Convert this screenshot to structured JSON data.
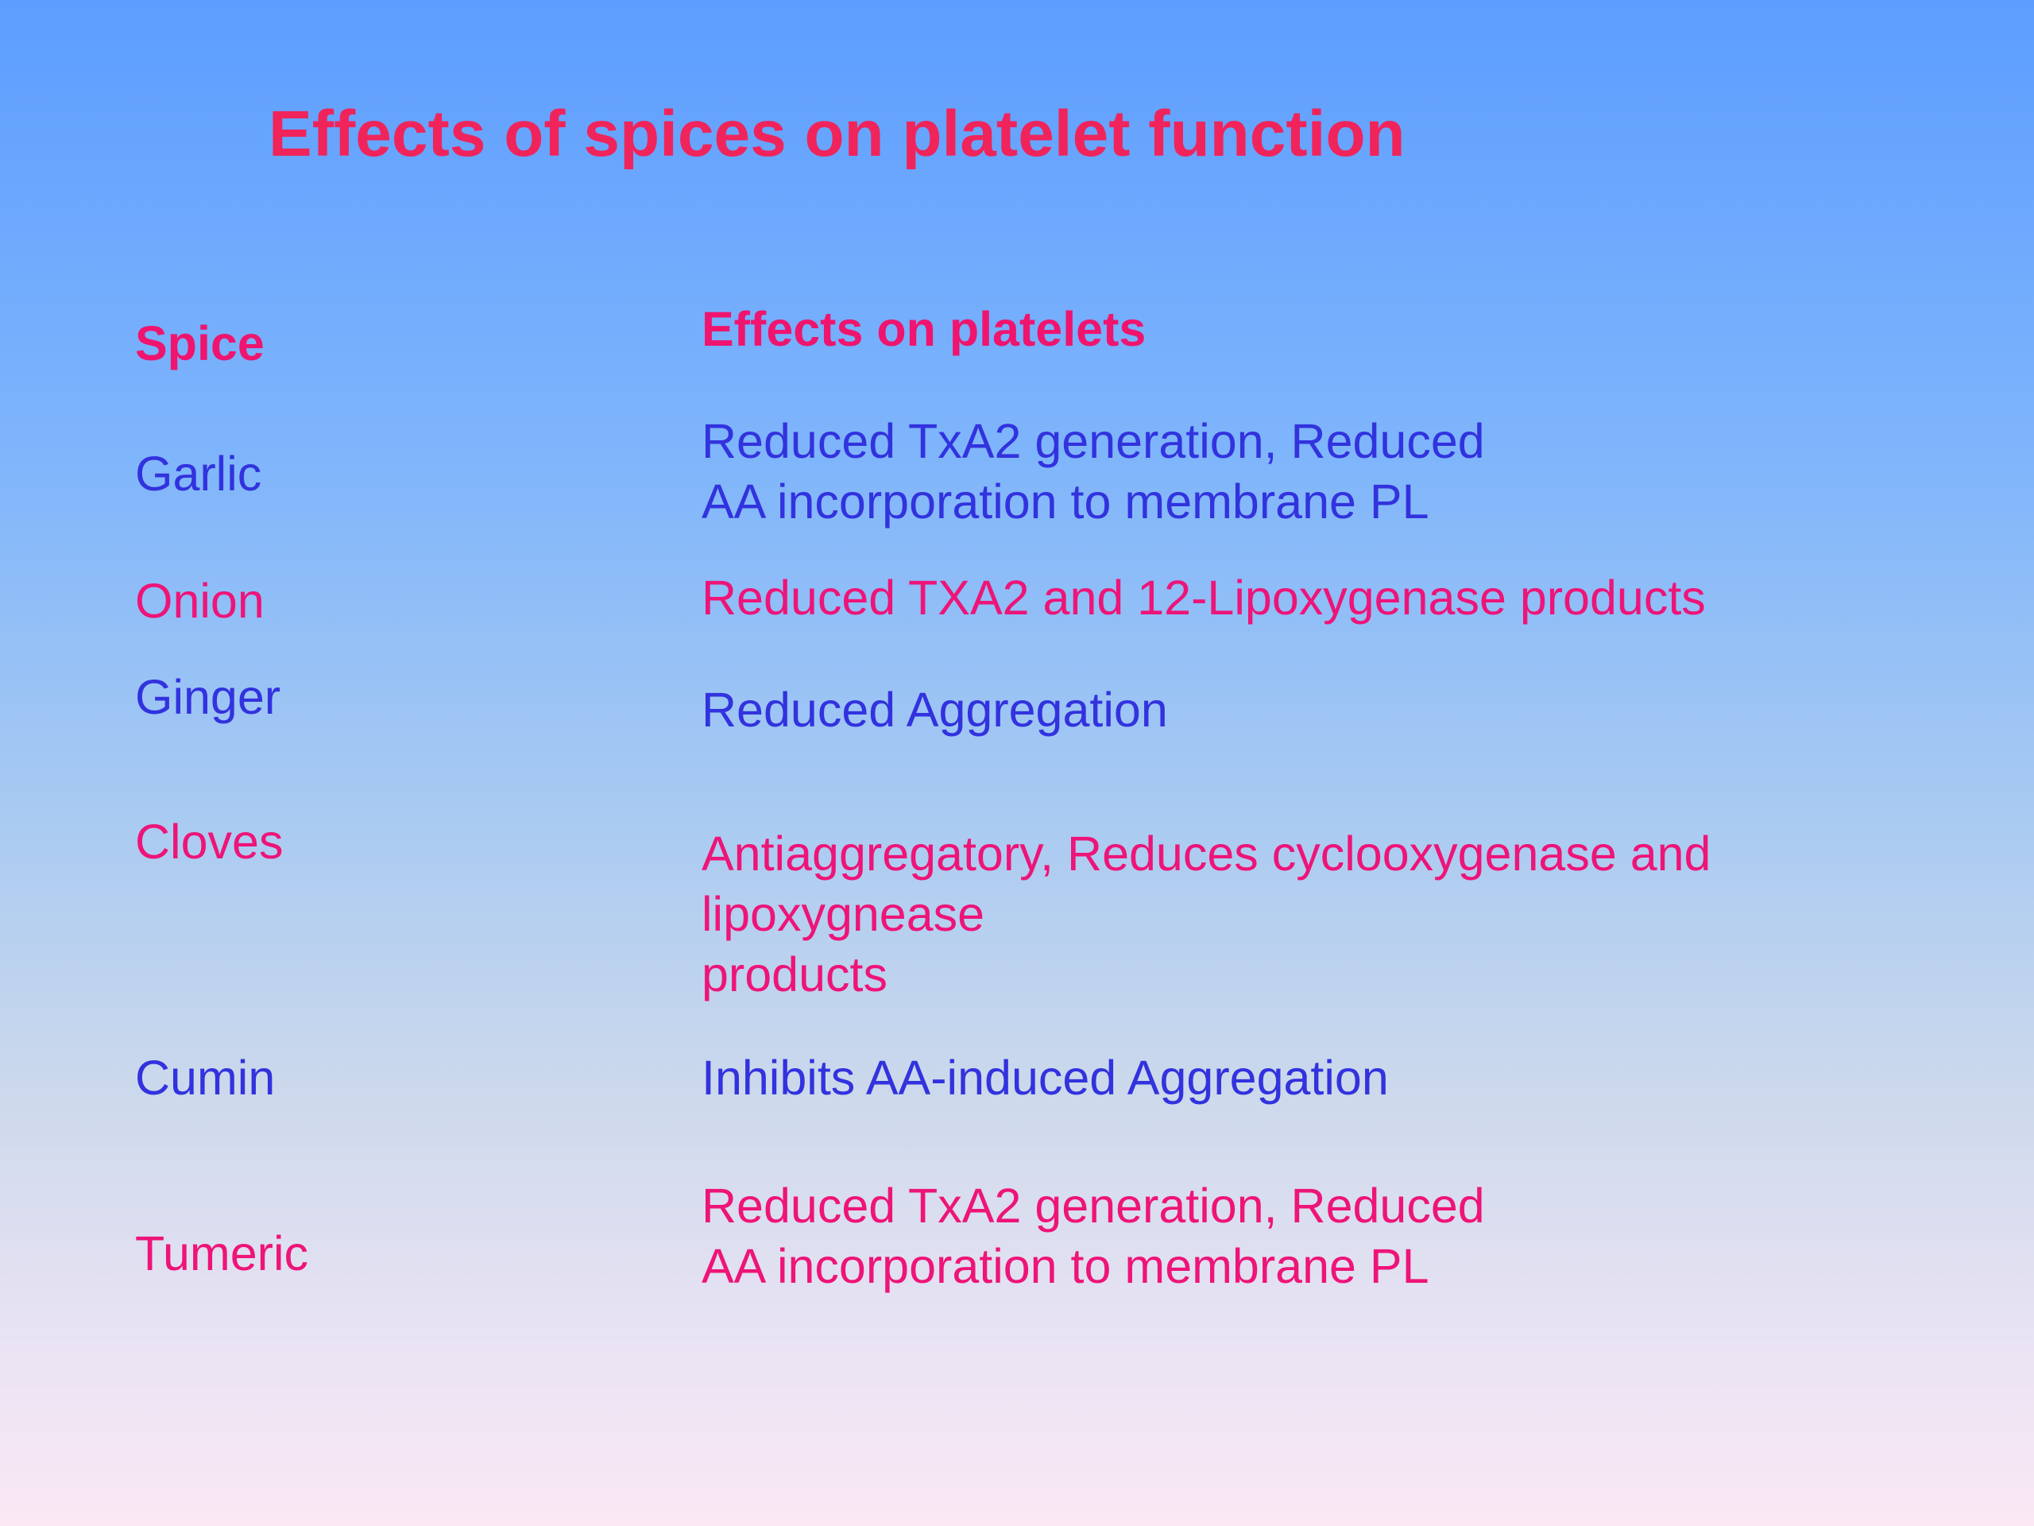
{
  "slide": {
    "title": "Effects of spices on platelet function",
    "headers": {
      "spice": "Spice",
      "effects": "Effects on platelets"
    },
    "rows": [
      {
        "spice": "Garlic",
        "effect_lines": [
          "Reduced TxA2 generation, Reduced",
          "AA incorporation to membrane PL"
        ]
      },
      {
        "spice": "Onion",
        "effect_lines": [
          "Reduced TXA2 and 12-Lipoxygenase products"
        ]
      },
      {
        "spice": "Ginger",
        "effect_lines": [
          "Reduced Aggregation"
        ]
      },
      {
        "spice": "Cloves",
        "effect_lines": [
          "Antiaggregatory, Reduces cyclooxygenase and",
          "lipoxygnease",
          "products"
        ]
      },
      {
        "spice": "Cumin",
        "effect_lines": [
          "Inhibits AA-induced Aggregation"
        ]
      },
      {
        "spice": "Tumeric",
        "effect_lines": [
          "Reduced TxA2 generation, Reduced",
          "AA incorporation to membrane PL"
        ]
      }
    ]
  },
  "colors": {
    "title": "#f0245b",
    "header": "#f0146e",
    "blue_text": "#3232de",
    "pink_text": "#ee1478",
    "background_top": "#5c9dff",
    "background_bottom": "#fbe8f4"
  }
}
